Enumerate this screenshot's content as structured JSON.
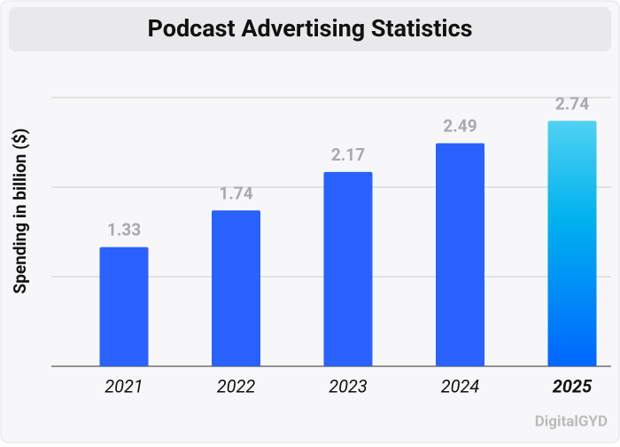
{
  "chart_data": {
    "type": "bar",
    "title": "Podcast Advertising Statistics",
    "y_label": "Spending in billion ($)",
    "categories": [
      "2021",
      "2022",
      "2023",
      "2024",
      "2025"
    ],
    "values": [
      1.33,
      1.74,
      2.17,
      2.49,
      2.74
    ],
    "color": "#2962ff",
    "highlight_index": 4,
    "highlight_colors": [
      "#4fd2f2",
      "#00b2ee",
      "#0066ff"
    ],
    "ylim": [
      0,
      3
    ],
    "yticks": [
      0,
      1,
      2,
      3
    ],
    "grid": true,
    "tick_labels": false,
    "watermark": "DigitalGYD"
  }
}
